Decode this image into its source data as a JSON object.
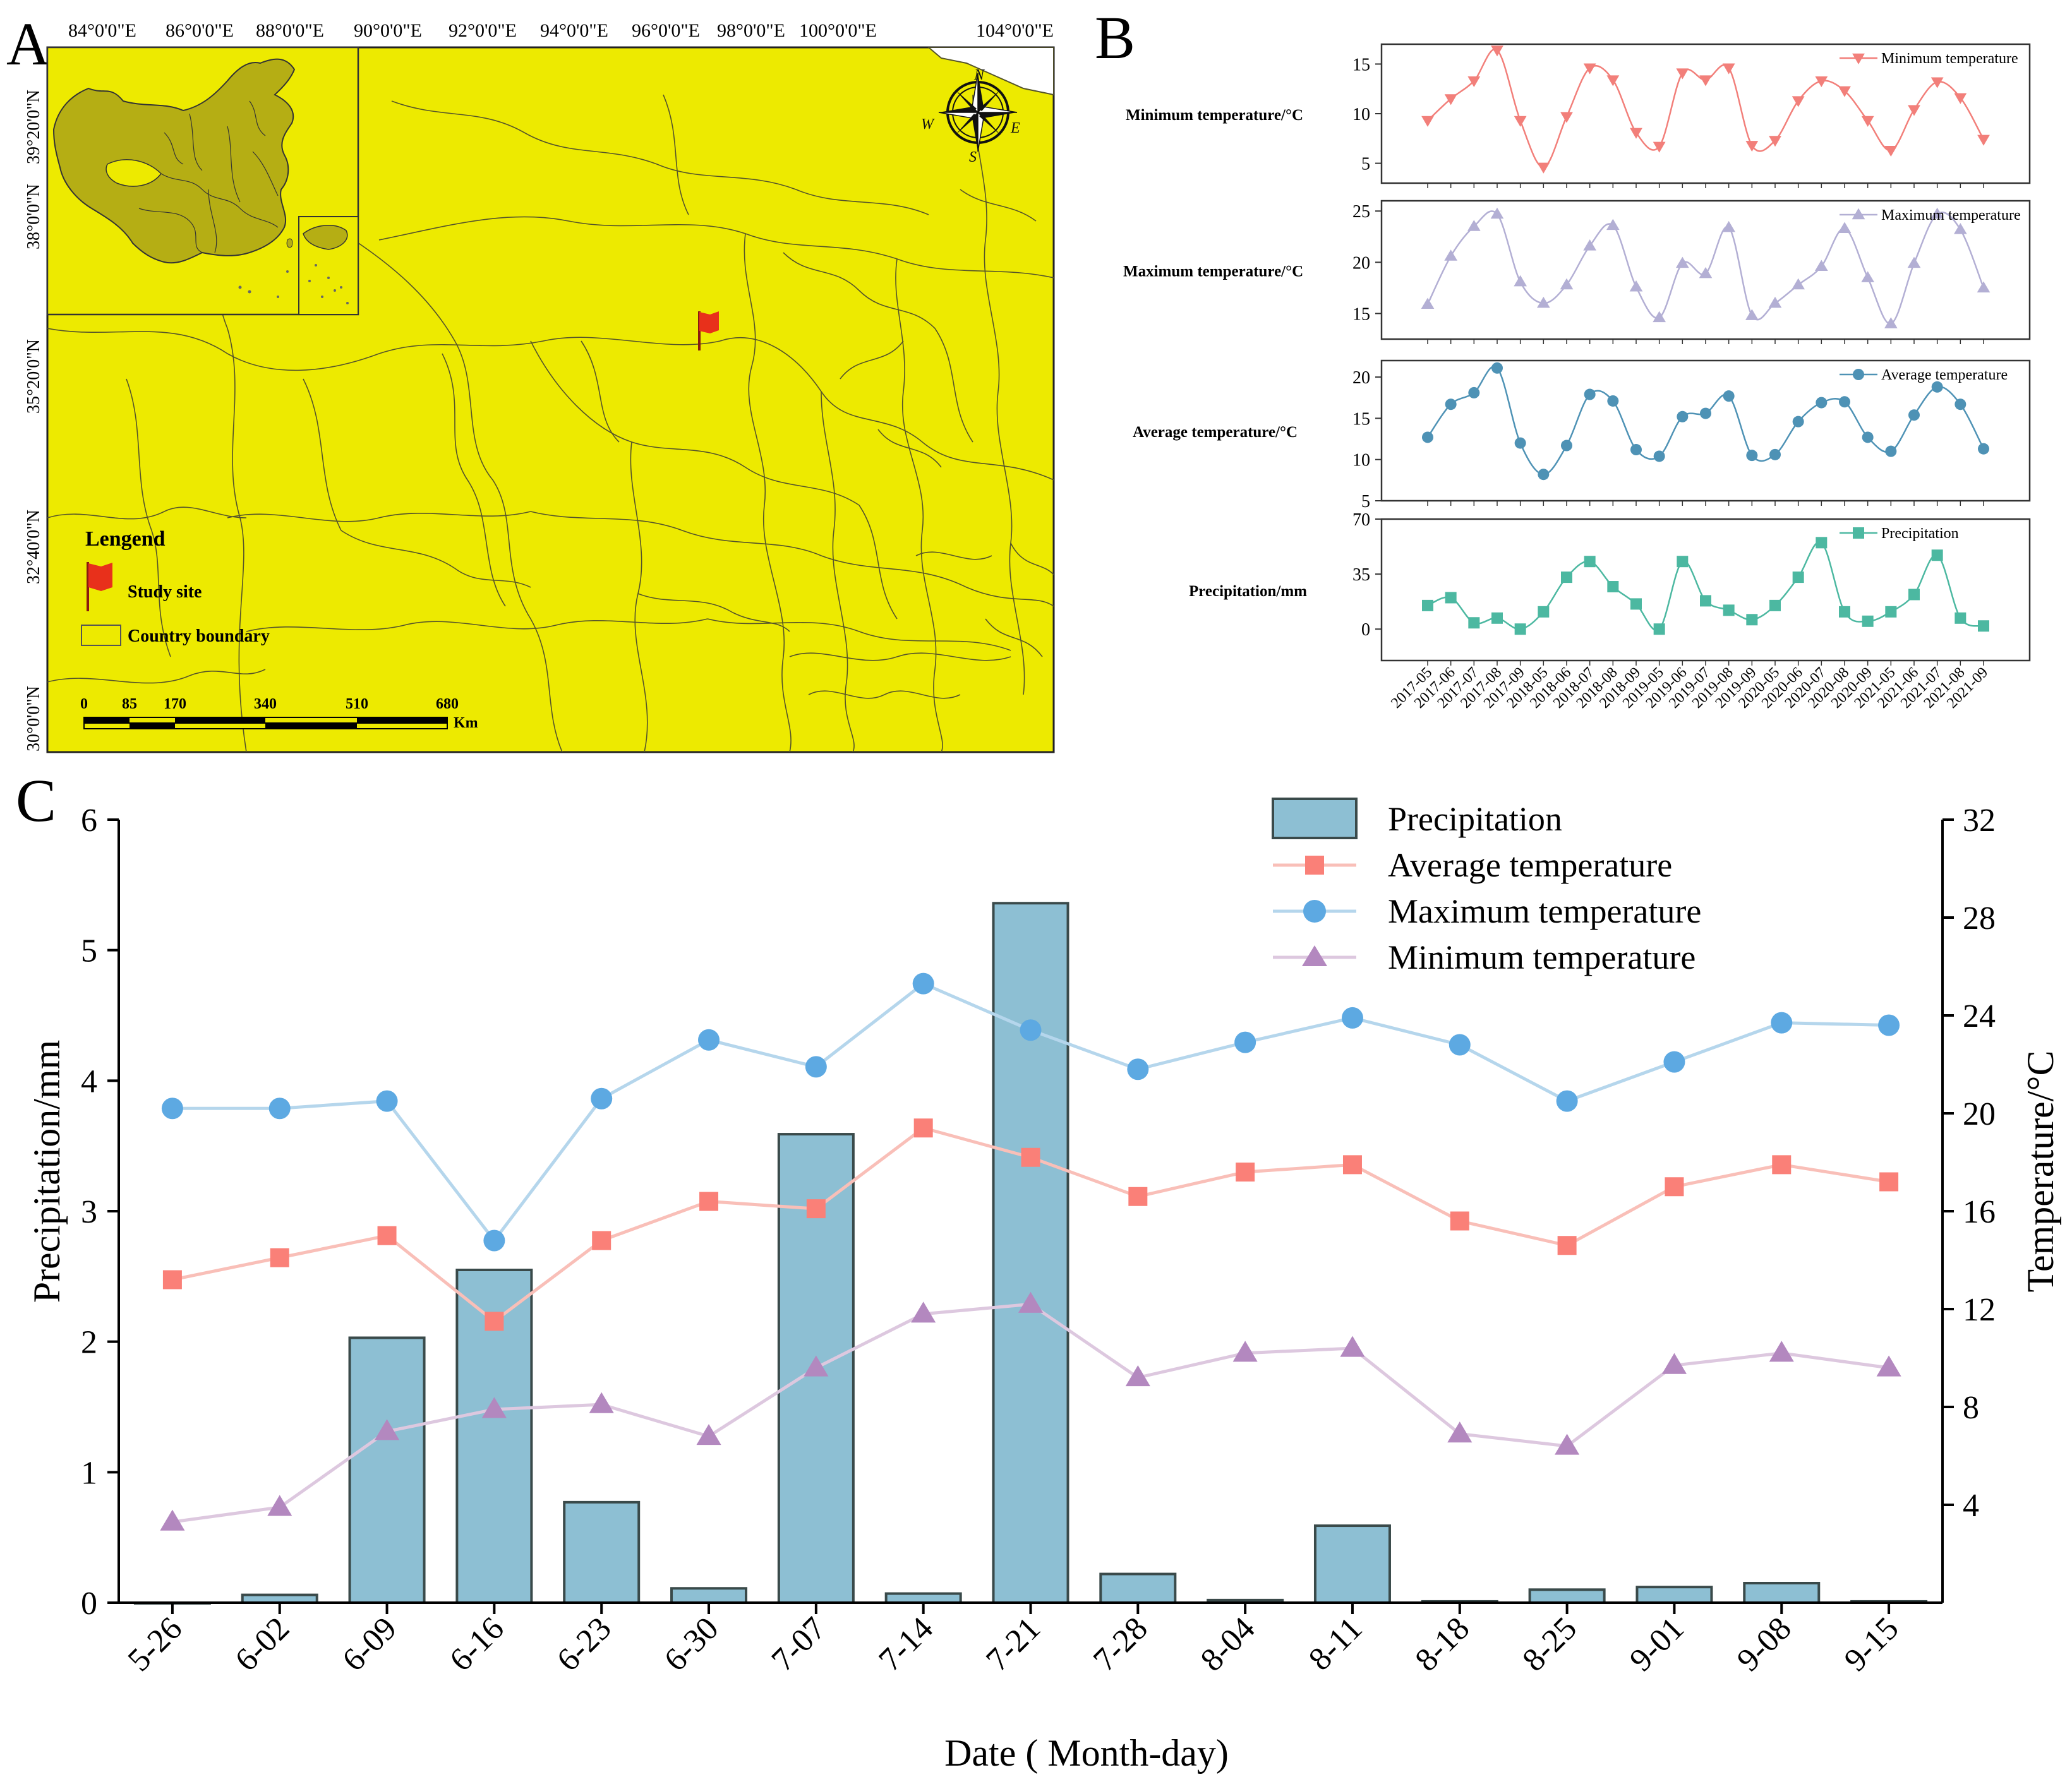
{
  "colors": {
    "map_fill": "#EDEA00",
    "map_border": "#55542a",
    "china_fill": "#B5AE14",
    "flag": "#E8301B",
    "min_line": "#F27F7A",
    "max_line": "#B3AFD4",
    "avg_line": "#4E92B5",
    "precip_line": "#4CB8A1",
    "bar_fill": "#8DBFD3",
    "bar_stroke": "#3a4a4a",
    "c_avg": "#FA8078",
    "c_max": "#5DA9E2",
    "c_min": "#B388BF",
    "c_avg_line": "#F9BFB8",
    "c_max_line": "#B5D6EC",
    "c_min_line": "#DDC8DF"
  },
  "map": {
    "panel_label": "A",
    "top_lon_labels": [
      "84°0'0\"E",
      "86°0'0\"E",
      "88°0'0\"E",
      "90°0'0\"E",
      "92°0'0\"E",
      "94°0'0\"E",
      "96°0'0\"E",
      "98°0'0\"E",
      "100°0'0\"E",
      "104°0'0\"E"
    ],
    "left_lat_labels": [
      "39°20'0\"N",
      "38°0'0\"N",
      "35°20'0\"N",
      "32°40'0\"N",
      "30°0'0\"N"
    ],
    "legend_title": "Lengend",
    "legend_study_site": "Study site",
    "legend_country_boundary": "Country boundary",
    "scale_ticks": [
      "0",
      "85",
      "170",
      "340",
      "510",
      "680"
    ],
    "scale_unit": "Km",
    "compass": {
      "n": "N",
      "s": "S",
      "e": "E",
      "w": "W"
    }
  },
  "panel_b": {
    "panel_label": "B",
    "x_labels": [
      "2017-05",
      "2017-06",
      "2017-07",
      "2017-08",
      "2017-09",
      "2018-05",
      "2018-06",
      "2018-07",
      "2018-08",
      "2018-09",
      "2019-05",
      "2019-06",
      "2019-07",
      "2019-08",
      "2019-09",
      "2020-05",
      "2020-06",
      "2020-07",
      "2020-08",
      "2020-09",
      "2021-05",
      "2021-06",
      "2021-07",
      "2021-08",
      "2021-09"
    ],
    "subplots": [
      {
        "name": "Minimum temperature",
        "ylabel": "Minimum temperature/°C",
        "ylim": [
          3,
          17
        ],
        "yticks": [
          5,
          10,
          15
        ],
        "values": [
          9.3,
          11.5,
          13.3,
          16.4,
          9.3,
          4.6,
          9.7,
          14.6,
          13.4,
          8.1,
          6.7,
          14.1,
          13.4,
          14.6,
          6.8,
          7.3,
          11.3,
          13.3,
          12.3,
          9.3,
          6.3,
          10.4,
          13.2,
          11.6,
          7.4
        ],
        "marker": "triangle-down",
        "color_key": "min_line"
      },
      {
        "name": "Maximum temperature",
        "ylabel": "Maximum temperature/°C",
        "ylim": [
          12.5,
          26
        ],
        "yticks": [
          15,
          20,
          25
        ],
        "values": [
          15.9,
          20.6,
          23.5,
          24.7,
          18.1,
          16.0,
          17.8,
          21.6,
          23.6,
          17.6,
          14.6,
          19.9,
          18.9,
          23.4,
          14.8,
          16.0,
          17.8,
          19.6,
          23.3,
          18.5,
          14.0,
          19.9,
          24.7,
          23.2,
          17.5
        ],
        "marker": "triangle-up",
        "color_key": "max_line"
      },
      {
        "name": "Average temperature",
        "ylabel": "Average temperature/°C",
        "ylim": [
          5,
          22
        ],
        "yticks": [
          5,
          10,
          15,
          20
        ],
        "values": [
          12.7,
          16.7,
          18.1,
          21.1,
          12.0,
          8.2,
          11.7,
          17.9,
          17.1,
          11.2,
          10.4,
          15.2,
          15.6,
          17.7,
          10.5,
          10.6,
          14.6,
          16.9,
          17.0,
          12.7,
          11.0,
          15.4,
          18.8,
          16.7,
          11.3
        ],
        "marker": "circle",
        "color_key": "avg_line"
      },
      {
        "name": "Precipitation",
        "ylabel": "Precipitation/mm",
        "ylim": [
          -20,
          70
        ],
        "yticks": [
          0,
          35,
          70
        ],
        "values": [
          15,
          20,
          4,
          7,
          0,
          11,
          33,
          43,
          27,
          16,
          0,
          43,
          18,
          12,
          6,
          15,
          33,
          55,
          11,
          5,
          11,
          22,
          47,
          7,
          2
        ],
        "marker": "square",
        "color_key": "precip_line"
      }
    ]
  },
  "chart_data": {
    "panel_label": "C",
    "type": "bar",
    "xlabel": "Date ( Month-day)",
    "ylabel_left": "Precipitation/mm",
    "ylabel_right": "Temperature/°C",
    "ylim_left": [
      0,
      6
    ],
    "ylim_right": [
      0,
      32
    ],
    "yticks_left": [
      0,
      1,
      2,
      3,
      4,
      5,
      6
    ],
    "yticks_right": [
      4,
      8,
      12,
      16,
      20,
      24,
      28,
      32
    ],
    "categories": [
      "5-26",
      "6-02",
      "6-09",
      "6-16",
      "6-23",
      "6-30",
      "7-07",
      "7-14",
      "7-21",
      "7-28",
      "8-04",
      "8-11",
      "8-18",
      "8-25",
      "9-01",
      "9-08",
      "9-15"
    ],
    "bars": {
      "name": "Precipitation",
      "values": [
        0.0,
        0.06,
        2.03,
        2.55,
        0.77,
        0.11,
        3.59,
        0.07,
        5.36,
        0.22,
        0.02,
        0.59,
        0.01,
        0.1,
        0.12,
        0.15,
        0.01
      ]
    },
    "series": [
      {
        "name": "Average temperature",
        "marker": "square",
        "values": [
          13.2,
          14.1,
          15.0,
          11.5,
          14.8,
          16.4,
          16.1,
          19.4,
          18.2,
          16.6,
          17.6,
          17.9,
          15.6,
          14.6,
          17.0,
          17.9,
          17.2
        ]
      },
      {
        "name": "Maximum temperature",
        "marker": "circle",
        "values": [
          20.2,
          20.2,
          20.5,
          14.8,
          20.6,
          23.0,
          21.9,
          25.3,
          23.4,
          21.8,
          22.9,
          23.9,
          22.8,
          20.5,
          22.1,
          23.7,
          23.6
        ]
      },
      {
        "name": "Minimum temperature",
        "marker": "triangle",
        "values": [
          3.3,
          3.9,
          7.0,
          7.9,
          8.1,
          6.8,
          9.6,
          11.8,
          12.2,
          9.2,
          10.2,
          10.4,
          6.9,
          6.4,
          9.7,
          10.2,
          9.6
        ]
      }
    ],
    "legend": [
      "Precipitation",
      "Average temperature",
      "Maximum temperature",
      "Minimum temperature"
    ]
  }
}
